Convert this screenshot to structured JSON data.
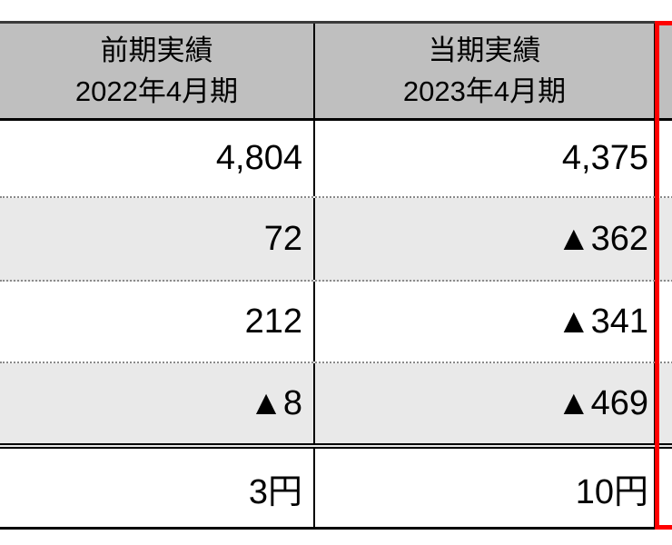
{
  "table": {
    "header": {
      "col1": {
        "line1": "前期実績",
        "line2": "2022年4月期"
      },
      "col2": {
        "line1": "当期実績",
        "line2": "2023年4月期"
      }
    },
    "rows": [
      {
        "prev": "4,804",
        "curr": "4,375"
      },
      {
        "prev": "72",
        "curr": "▲362"
      },
      {
        "prev": "212",
        "curr": "▲341"
      },
      {
        "prev": "▲8",
        "curr": "▲469"
      },
      {
        "prev": "3円",
        "curr": "10円"
      }
    ],
    "colors": {
      "header_bg": "#bfbfbf",
      "stripe_bg": "#e9e9e9",
      "highlight_border": "#ff0000"
    }
  },
  "chart_data": {
    "type": "table",
    "title": "",
    "columns": [
      "前期実績 2022年4月期",
      "当期実績 2023年4月期"
    ],
    "cells": [
      [
        "4,804",
        "4,375"
      ],
      [
        "72",
        "▲362"
      ],
      [
        "212",
        "▲341"
      ],
      [
        "▲8",
        "▲469"
      ],
      [
        "3円",
        "10円"
      ]
    ],
    "notes_layout": "third column on right is highlighted with red border and cropped at image edge"
  }
}
